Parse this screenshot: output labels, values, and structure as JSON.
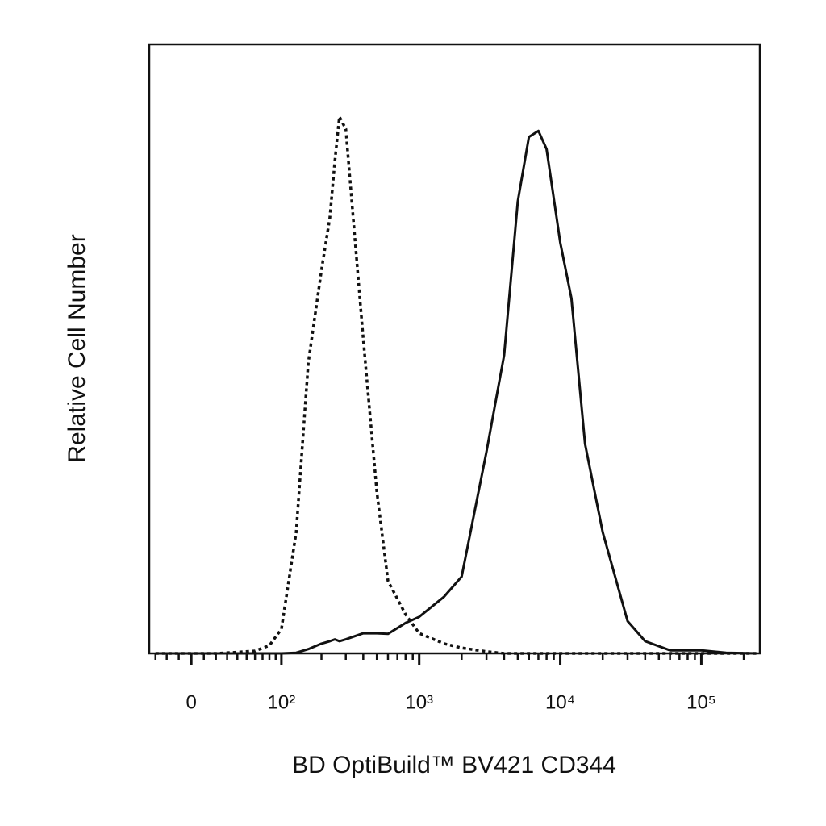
{
  "chart_data": {
    "type": "line",
    "xlabel": "BD OptiBuild™ BV421 CD344",
    "ylabel": "Relative Cell Number",
    "xscale": "biexponential",
    "x": [
      -30,
      0,
      20,
      40,
      60,
      80,
      100,
      130,
      160,
      200,
      230,
      250,
      270,
      300,
      400,
      500,
      600,
      800,
      1000,
      1500,
      2000,
      3000,
      4000,
      5000,
      6000,
      7000,
      8000,
      10000,
      12000,
      15000,
      20000,
      30000,
      40000,
      60000,
      100000,
      150000,
      250000
    ],
    "series": [
      {
        "color": "#111111",
        "style": "dotted",
        "values": [
          0,
          0,
          0,
          0.2,
          0.4,
          1.3,
          4,
          19.9,
          47.7,
          62.9,
          71.5,
          80.8,
          88.1,
          86.1,
          51.7,
          26.5,
          11.9,
          6.4,
          3.3,
          1.6,
          0.9,
          0.3,
          0,
          0,
          0,
          0,
          0,
          0,
          0,
          0,
          0,
          0,
          0,
          0,
          0,
          0,
          0
        ]
      },
      {
        "color": "#111111",
        "style": "solid",
        "values": [
          0,
          0,
          0,
          0,
          0,
          0,
          0,
          0.1,
          0.7,
          1.6,
          2.0,
          2.3,
          2.0,
          2.3,
          3.3,
          3.3,
          3.2,
          5.0,
          6.0,
          9.3,
          12.6,
          33.1,
          49,
          74.2,
          84.8,
          85.8,
          82.8,
          67.5,
          58.3,
          34.4,
          19.9,
          5.3,
          2.0,
          0.5,
          0.5,
          0.1,
          0
        ]
      }
    ],
    "xlim": [
      -36,
      260000
    ],
    "ylim": [
      0,
      100
    ],
    "xticks": [
      0,
      {
        "value": 100,
        "label": "10²"
      },
      {
        "value": 1000,
        "label": "10³"
      },
      {
        "value": 10000,
        "label": "10⁴"
      },
      {
        "value": 100000,
        "label": "10⁵"
      }
    ],
    "xminor_ticks": [
      -30,
      -20,
      -10,
      10,
      20,
      30,
      40,
      50,
      60,
      70,
      80,
      90,
      200,
      300,
      400,
      500,
      600,
      700,
      800,
      900,
      2000,
      3000,
      4000,
      5000,
      6000,
      7000,
      8000,
      9000,
      20000,
      30000,
      40000,
      50000,
      60000,
      70000,
      80000,
      90000,
      200000
    ]
  }
}
